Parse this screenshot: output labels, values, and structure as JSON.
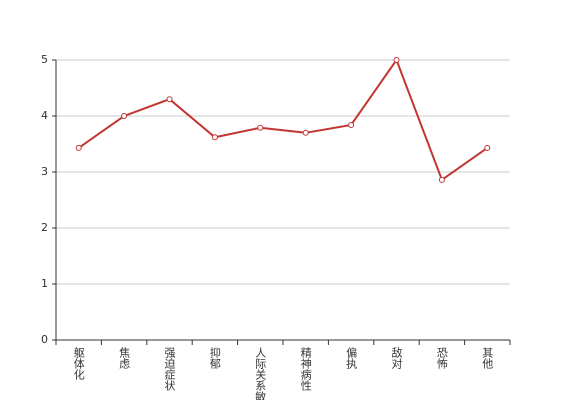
{
  "chart_data": {
    "type": "line",
    "categories": [
      "躯体化",
      "焦虑",
      "强迫症状",
      "抑郁",
      "人际关系敏感",
      "精神病性",
      "偏执",
      "敌对",
      "恐怖",
      "其他"
    ],
    "series": [
      {
        "color": "#c23531",
        "values": [
          3.43,
          4.0,
          4.3,
          3.62,
          3.79,
          3.7,
          3.84,
          5.0,
          2.86,
          3.43
        ]
      }
    ],
    "ylim": [
      0,
      5
    ],
    "yticks": [
      0,
      1,
      2,
      3,
      4,
      5
    ],
    "grid": true
  }
}
